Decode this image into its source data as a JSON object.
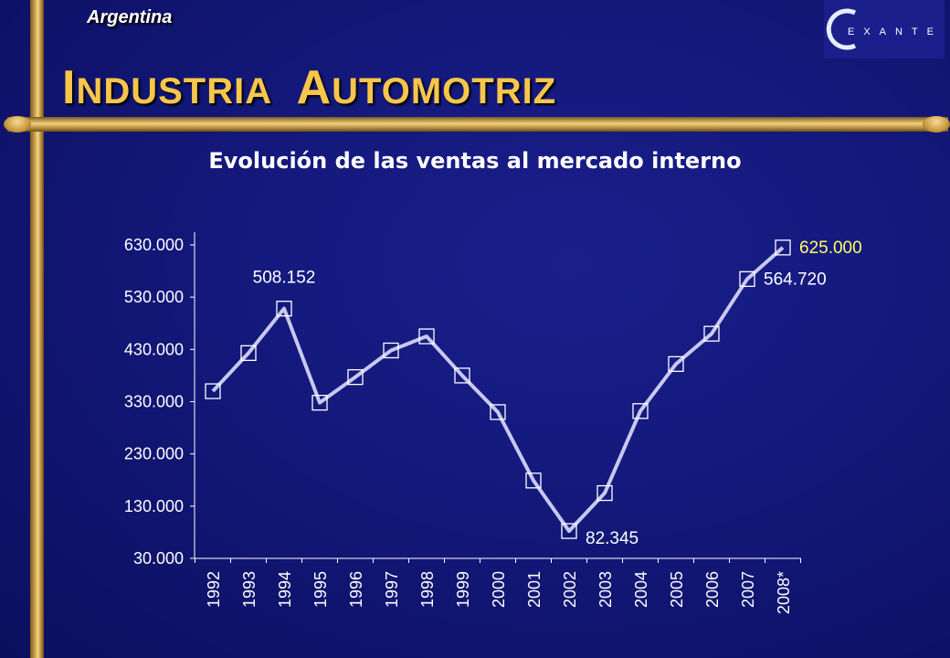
{
  "header": {
    "country": "Argentina",
    "title_first_cap": "I",
    "title_first_rest": "NDUSTRIA",
    "title_second_cap": "A",
    "title_second_rest": "UTOMOTRIZ",
    "logo_text": "EXANTE"
  },
  "colors": {
    "background": "#13187a",
    "title": "#f7c64a",
    "line": "#c8c8f0",
    "highlight_label": "#ffff66"
  },
  "chart_data": {
    "type": "line",
    "title": "Evolución de las ventas al mercado interno",
    "xlabel": "",
    "ylabel": "",
    "categories": [
      "1992",
      "1993",
      "1994",
      "1995",
      "1996",
      "1997",
      "1998",
      "1999",
      "2000",
      "2001",
      "2002",
      "2003",
      "2004",
      "2005",
      "2006",
      "2007",
      "2008*"
    ],
    "values": [
      350000,
      423000,
      508152,
      328000,
      377000,
      428000,
      455000,
      380000,
      310000,
      179000,
      82345,
      155000,
      312000,
      402000,
      460000,
      564720,
      625000
    ],
    "ylim": [
      30000,
      630000
    ],
    "yticks": [
      30000,
      130000,
      230000,
      330000,
      430000,
      530000,
      630000
    ],
    "ytick_labels": [
      "30.000",
      "130.000",
      "230.000",
      "330.000",
      "430.000",
      "530.000",
      "630.000"
    ],
    "data_labels": [
      {
        "index": 2,
        "text": "508.152",
        "highlight": false
      },
      {
        "index": 10,
        "text": "82.345",
        "highlight": false
      },
      {
        "index": 15,
        "text": "564.720",
        "highlight": false
      },
      {
        "index": 16,
        "text": "625.000",
        "highlight": true
      }
    ],
    "grid": false,
    "legend": "none"
  }
}
